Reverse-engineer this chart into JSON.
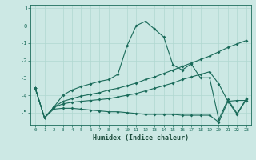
{
  "xlabel": "Humidex (Indice chaleur)",
  "background_color": "#cce8e4",
  "line_color": "#1a6b5a",
  "grid_color": "#b0d8d0",
  "xlim": [
    -0.5,
    23.5
  ],
  "ylim": [
    -5.7,
    1.2
  ],
  "xtick_labels": [
    "0",
    "1",
    "2",
    "3",
    "4",
    "5",
    "6",
    "7",
    "8",
    "9",
    "10",
    "11",
    "12",
    "13",
    "14",
    "15",
    "16",
    "17",
    "18",
    "19",
    "20",
    "21",
    "22",
    "23"
  ],
  "ytick_values": [
    1,
    0,
    -1,
    -2,
    -3,
    -4,
    -5
  ],
  "series": [
    {
      "x": [
        0,
        1,
        2,
        3,
        4,
        5,
        6,
        7,
        8,
        9,
        10,
        11,
        12,
        13,
        14,
        15,
        16,
        17,
        18,
        19,
        20,
        21,
        22,
        23
      ],
      "y": [
        -3.6,
        -5.3,
        -4.7,
        -4.0,
        -3.7,
        -3.5,
        -3.35,
        -3.2,
        -3.1,
        -2.8,
        -1.15,
        0.0,
        0.25,
        -0.2,
        -0.65,
        -2.25,
        -2.55,
        -2.2,
        -3.0,
        -3.0,
        -5.4,
        -4.25,
        -5.05,
        -4.2
      ]
    },
    {
      "x": [
        0,
        1,
        2,
        3,
        4,
        5,
        6,
        7,
        8,
        9,
        10,
        11,
        12,
        13,
        14,
        15,
        16,
        17,
        18,
        19,
        20,
        21,
        22,
        23
      ],
      "y": [
        -3.6,
        -5.3,
        -4.7,
        -4.35,
        -4.2,
        -4.05,
        -3.95,
        -3.85,
        -3.7,
        -3.6,
        -3.45,
        -3.3,
        -3.1,
        -2.95,
        -2.75,
        -2.55,
        -2.35,
        -2.15,
        -1.95,
        -1.75,
        -1.5,
        -1.25,
        -1.05,
        -0.85
      ]
    },
    {
      "x": [
        0,
        1,
        2,
        3,
        4,
        5,
        6,
        7,
        8,
        9,
        10,
        11,
        12,
        13,
        14,
        15,
        16,
        17,
        18,
        19,
        20,
        21,
        22,
        23
      ],
      "y": [
        -3.6,
        -5.3,
        -4.7,
        -4.5,
        -4.4,
        -4.35,
        -4.3,
        -4.25,
        -4.2,
        -4.1,
        -4.0,
        -3.9,
        -3.75,
        -3.6,
        -3.45,
        -3.3,
        -3.1,
        -2.95,
        -2.8,
        -2.65,
        -3.35,
        -4.35,
        -4.3,
        -4.3
      ]
    },
    {
      "x": [
        0,
        1,
        2,
        3,
        4,
        5,
        6,
        7,
        8,
        9,
        10,
        11,
        12,
        13,
        14,
        15,
        16,
        17,
        18,
        19,
        20,
        21,
        22,
        23
      ],
      "y": [
        -3.6,
        -5.3,
        -4.8,
        -4.75,
        -4.75,
        -4.8,
        -4.85,
        -4.9,
        -4.95,
        -4.95,
        -5.0,
        -5.05,
        -5.1,
        -5.1,
        -5.1,
        -5.1,
        -5.15,
        -5.15,
        -5.15,
        -5.15,
        -5.55,
        -4.35,
        -5.1,
        -4.25
      ]
    }
  ]
}
